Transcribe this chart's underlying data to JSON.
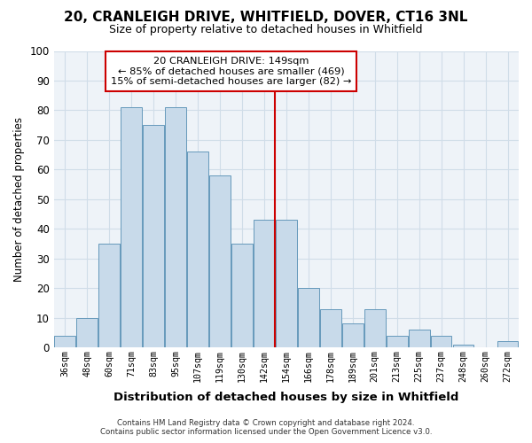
{
  "title": "20, CRANLEIGH DRIVE, WHITFIELD, DOVER, CT16 3NL",
  "subtitle": "Size of property relative to detached houses in Whitfield",
  "xlabel": "Distribution of detached houses by size in Whitfield",
  "ylabel": "Number of detached properties",
  "bin_labels": [
    "36sqm",
    "48sqm",
    "60sqm",
    "71sqm",
    "83sqm",
    "95sqm",
    "107sqm",
    "119sqm",
    "130sqm",
    "142sqm",
    "154sqm",
    "166sqm",
    "178sqm",
    "189sqm",
    "201sqm",
    "213sqm",
    "225sqm",
    "237sqm",
    "248sqm",
    "260sqm",
    "272sqm"
  ],
  "bar_heights": [
    4,
    10,
    35,
    81,
    75,
    81,
    66,
    58,
    35,
    43,
    43,
    20,
    13,
    8,
    13,
    4,
    6,
    4,
    1,
    0,
    2
  ],
  "bar_color": "#c8daea",
  "bar_edge_color": "#6699bb",
  "vline_x_idx": 10,
  "vline_color": "#cc0000",
  "ylim": [
    0,
    100
  ],
  "annotation_title": "20 CRANLEIGH DRIVE: 149sqm",
  "annotation_line1": "← 85% of detached houses are smaller (469)",
  "annotation_line2": "15% of semi-detached houses are larger (82) →",
  "annotation_box_color": "#ffffff",
  "annotation_box_edge": "#cc0000",
  "footer_line1": "Contains HM Land Registry data © Crown copyright and database right 2024.",
  "footer_line2": "Contains public sector information licensed under the Open Government Licence v3.0.",
  "grid_color": "#d0dde8",
  "background_color": "#ffffff",
  "plot_bg_color": "#eef3f8"
}
